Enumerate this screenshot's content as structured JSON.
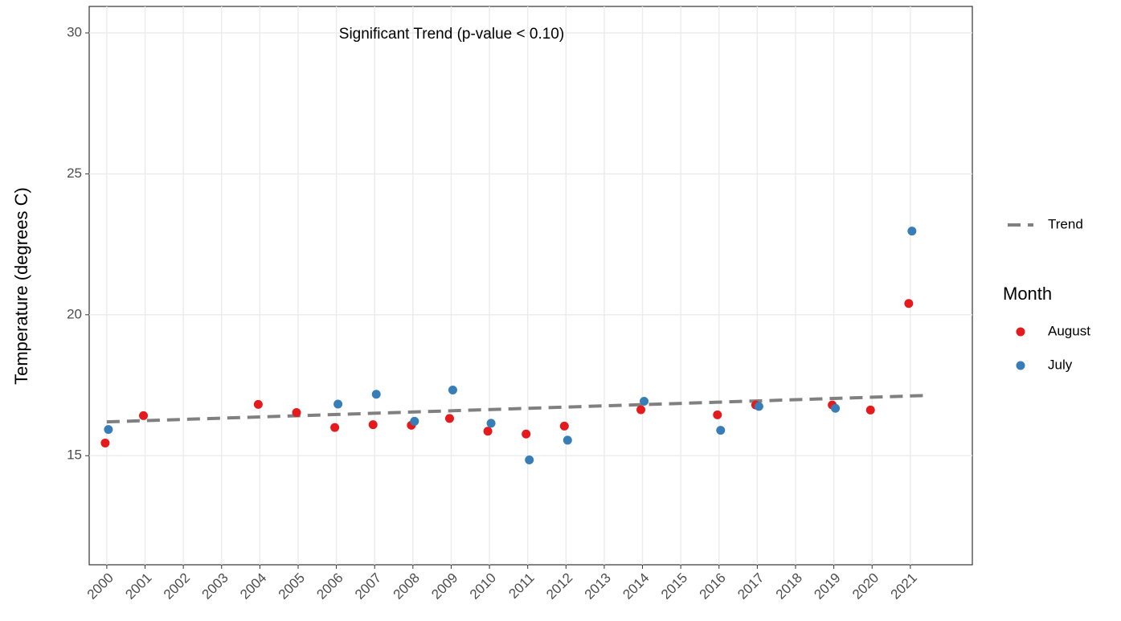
{
  "chart_data": {
    "type": "scatter",
    "annotation": "Significant Trend (p-value < 0.10)",
    "y_label": "Temperature (degrees C)",
    "legend_title": "Month",
    "xlim": [
      1999.54,
      2022.62
    ],
    "xticks": [
      2000,
      2001,
      2002,
      2003,
      2004,
      2005,
      2006,
      2007,
      2008,
      2009,
      2010,
      2011,
      2012,
      2013,
      2014,
      2015,
      2016,
      2017,
      2018,
      2019,
      2020,
      2021
    ],
    "ylim": [
      11.13,
      30.94
    ],
    "yticks": [
      15,
      20,
      25,
      30
    ],
    "grid": true,
    "trend": {
      "name": "Trend",
      "color": "#808080",
      "x": [
        2000,
        2021.5
      ],
      "values": [
        16.2,
        17.14
      ]
    },
    "series": [
      {
        "name": "August",
        "color": "#e41a1c",
        "x": [
          2000,
          2001,
          2004,
          2005,
          2006,
          2007,
          2008,
          2009,
          2010,
          2011,
          2012,
          2014,
          2016,
          2017,
          2019,
          2020,
          2021
        ],
        "values": [
          15.45,
          16.42,
          16.82,
          16.53,
          16.0,
          16.1,
          16.08,
          16.32,
          15.87,
          15.77,
          16.05,
          16.63,
          16.45,
          16.8,
          16.8,
          16.62,
          20.4
        ]
      },
      {
        "name": "July",
        "color": "#377eb8",
        "x": [
          2000,
          2006,
          2007,
          2008,
          2009,
          2010,
          2011,
          2012,
          2014,
          2016,
          2017,
          2019,
          2021
        ],
        "values": [
          15.93,
          16.83,
          17.18,
          16.22,
          17.33,
          16.15,
          14.85,
          15.55,
          16.93,
          15.9,
          16.75,
          16.68,
          22.97
        ]
      }
    ]
  }
}
